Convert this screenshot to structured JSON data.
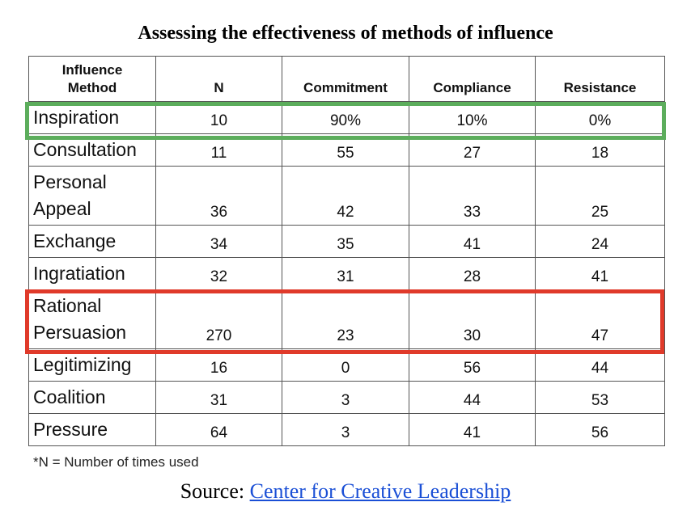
{
  "title": "Assessing the effectiveness of methods of influence",
  "chart_data": {
    "type": "table",
    "columns": [
      "Influence Method",
      "N",
      "Commitment",
      "Compliance",
      "Resistance"
    ],
    "header_lines": {
      "method_line1": "Influence",
      "method_line2": "Method",
      "n": "N",
      "commitment": "Commitment",
      "compliance": "Compliance",
      "resistance": "Resistance"
    },
    "rows": [
      {
        "method": [
          "Inspiration"
        ],
        "n": "10",
        "commitment": "90%",
        "compliance": "10%",
        "resistance": "0%"
      },
      {
        "method": [
          "Consultation"
        ],
        "n": "11",
        "commitment": "55",
        "compliance": "27",
        "resistance": "18"
      },
      {
        "method": [
          "Personal",
          "Appeal"
        ],
        "n": "36",
        "commitment": "42",
        "compliance": "33",
        "resistance": "25"
      },
      {
        "method": [
          "Exchange"
        ],
        "n": "34",
        "commitment": "35",
        "compliance": "41",
        "resistance": "24"
      },
      {
        "method": [
          "Ingratiation"
        ],
        "n": "32",
        "commitment": "31",
        "compliance": "28",
        "resistance": "41"
      },
      {
        "method": [
          "Rational",
          "Persuasion"
        ],
        "n": "270",
        "commitment": "23",
        "compliance": "30",
        "resistance": "47"
      },
      {
        "method": [
          "Legitimizing"
        ],
        "n": "16",
        "commitment": "0",
        "compliance": "56",
        "resistance": "44"
      },
      {
        "method": [
          "Coalition"
        ],
        "n": "31",
        "commitment": "3",
        "compliance": "44",
        "resistance": "53"
      },
      {
        "method": [
          "Pressure"
        ],
        "n": "64",
        "commitment": "3",
        "compliance": "41",
        "resistance": "56"
      }
    ],
    "highlights": [
      {
        "row": "Inspiration",
        "color": "#5cad5c"
      },
      {
        "row": "Rational Persuasion",
        "color": "#e03a2a"
      }
    ]
  },
  "footnote": "*N = Number of times used",
  "source": {
    "prefix": "Source: ",
    "link_text": "Center for Creative Leadership"
  },
  "colors": {
    "link": "#1a4fd6",
    "highlight_green": "#5cad5c",
    "highlight_red": "#e03a2a"
  }
}
